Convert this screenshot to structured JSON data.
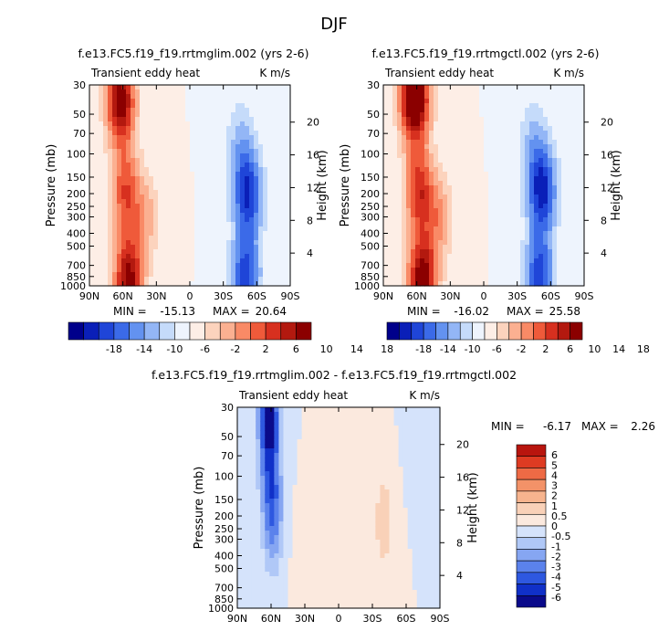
{
  "page_title": "DJF",
  "colors": {
    "panel_scale": [
      "#00008b",
      "#0a1fb8",
      "#1f45d8",
      "#3b6ae8",
      "#6392f0",
      "#93b6f6",
      "#c5dbfa",
      "#eef4fd",
      "#fdeee6",
      "#fcd3bd",
      "#fbb091",
      "#f98a66",
      "#ef5a3a",
      "#d7301f",
      "#b3190f",
      "#8b0000"
    ],
    "diff_scale": [
      "#0a0a8a",
      "#1030c8",
      "#2e58e0",
      "#5b82ec",
      "#86a6f2",
      "#b0c8f7",
      "#d5e3fb",
      "#fbe9de",
      "#f9d1b8",
      "#f7b48e",
      "#f39268",
      "#ee6a45",
      "#de3b22",
      "#b8150e"
    ]
  },
  "chart_data": [
    {
      "id": "panel-glim",
      "type": "contour",
      "title": "f.e13.FC5.f19_f19.rrtmglim.002 (yrs 2-6)",
      "left_label": "Transient eddy heat",
      "right_label": "K m/s",
      "ylabel": "Pressure (mb)",
      "ylabel_right": "Height (km)",
      "x_ticks": [
        "90N",
        "60N",
        "30N",
        "0",
        "30S",
        "60S",
        "90S"
      ],
      "y_ticks": [
        "30",
        "50",
        "70",
        "100",
        "150",
        "200",
        "250",
        "300",
        "400",
        "500",
        "700",
        "850",
        "1000"
      ],
      "y2_ticks": [
        "20",
        "16",
        "12",
        "8",
        "4"
      ],
      "stats": {
        "min_label": "MIN =",
        "min": "-15.13",
        "max_label": "MAX =",
        "max": "20.64"
      },
      "colorbar_labels": [
        "-18",
        "-14",
        "-10",
        "-6",
        "-2",
        "2",
        "6",
        "10",
        "14",
        "18"
      ],
      "peaks": [
        {
          "lat": 62,
          "p": 40,
          "v": 20
        },
        {
          "lat": 58,
          "p": 190,
          "v": 12
        },
        {
          "lat": 55,
          "p": 900,
          "v": 19
        },
        {
          "lat": 40,
          "p": 300,
          "v": 6
        },
        {
          "lat": -52,
          "p": 200,
          "v": -15
        },
        {
          "lat": -50,
          "p": 850,
          "v": -14
        },
        {
          "lat": -45,
          "p": 80,
          "v": -5
        }
      ]
    },
    {
      "id": "panel-gctl",
      "type": "contour",
      "title": "f.e13.FC5.f19_f19.rrtmgctl.002 (yrs 2-6)",
      "left_label": "Transient eddy heat",
      "right_label": "K m/s",
      "ylabel": "Pressure (mb)",
      "ylabel_right": "Height (km)",
      "x_ticks": [
        "90N",
        "60N",
        "30N",
        "0",
        "30S",
        "60S",
        "90S"
      ],
      "y_ticks": [
        "30",
        "50",
        "70",
        "100",
        "150",
        "200",
        "250",
        "300",
        "400",
        "500",
        "700",
        "850",
        "1000"
      ],
      "y2_ticks": [
        "20",
        "16",
        "12",
        "8",
        "4"
      ],
      "stats": {
        "min_label": "MIN =",
        "min": "-16.02",
        "max_label": "MAX =",
        "max": "25.58"
      },
      "colorbar_labels": [
        "-18",
        "-14",
        "-10",
        "-6",
        "-2",
        "2",
        "6",
        "10",
        "14",
        "18"
      ],
      "peaks": [
        {
          "lat": 62,
          "p": 38,
          "v": 25
        },
        {
          "lat": 58,
          "p": 190,
          "v": 14
        },
        {
          "lat": 55,
          "p": 900,
          "v": 20
        },
        {
          "lat": 40,
          "p": 300,
          "v": 7
        },
        {
          "lat": -52,
          "p": 190,
          "v": -16
        },
        {
          "lat": -50,
          "p": 850,
          "v": -14
        },
        {
          "lat": -45,
          "p": 80,
          "v": -5
        }
      ]
    },
    {
      "id": "panel-diff",
      "type": "contour",
      "title": "f.e13.FC5.f19_f19.rrtmglim.002 - f.e13.FC5.f19_f19.rrtmgctl.002",
      "left_label": "Transient eddy heat",
      "right_label": "K m/s",
      "ylabel": "Pressure (mb)",
      "ylabel_right": "Height (km)",
      "x_ticks": [
        "90N",
        "60N",
        "30N",
        "0",
        "30S",
        "60S",
        "90S"
      ],
      "y_ticks": [
        "30",
        "50",
        "70",
        "100",
        "150",
        "200",
        "250",
        "300",
        "400",
        "500",
        "700",
        "850",
        "1000"
      ],
      "y2_ticks": [
        "20",
        "16",
        "12",
        "8",
        "4"
      ],
      "stats": {
        "min_label": "MIN =",
        "min": "-6.17",
        "max_label": "MAX =",
        "max": "2.26"
      },
      "colorbar_labels": [
        "6",
        "5",
        "4",
        "3",
        "2",
        "1",
        "0.5",
        "0",
        "-0.5",
        "-1",
        "-2",
        "-3",
        "-4",
        "-5",
        "-6"
      ],
      "peaks": [
        {
          "lat": 62,
          "p": 35,
          "v": -6
        },
        {
          "lat": 60,
          "p": 120,
          "v": -3
        },
        {
          "lat": 58,
          "p": 250,
          "v": -2
        },
        {
          "lat": -40,
          "p": 220,
          "v": 1.5
        },
        {
          "lat": 30,
          "p": 500,
          "v": 0.8
        },
        {
          "lat": -70,
          "p": 40,
          "v": -0.8
        }
      ]
    }
  ]
}
